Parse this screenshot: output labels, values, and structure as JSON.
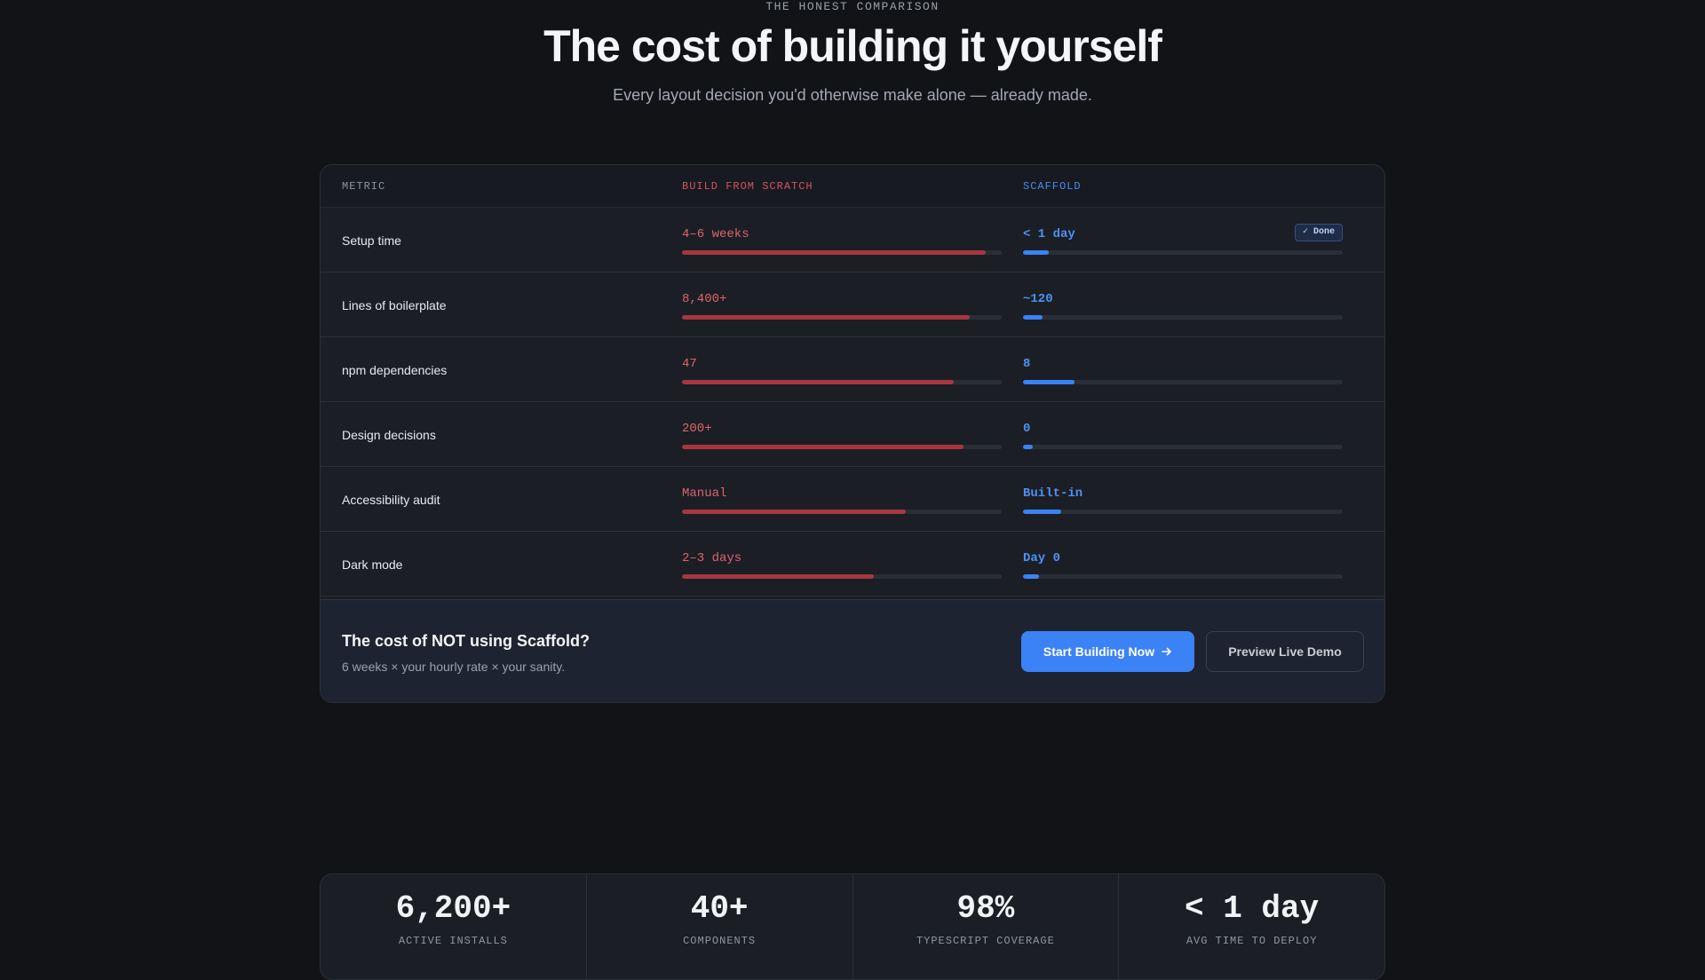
{
  "hero": {
    "eyebrow": "THE HONEST COMPARISON",
    "title": "The cost of building it yourself",
    "subtitle": "Every layout decision you'd otherwise make alone — already made."
  },
  "table": {
    "headers": {
      "metric": "METRIC",
      "scratch": "BUILD FROM SCRATCH",
      "scaffold": "SCAFFOLD"
    },
    "rows": [
      {
        "label": "Setup time",
        "scratch_value": "4–6 weeks",
        "scratch_fill_pct": 95,
        "scaffold_value": "< 1 day",
        "scaffold_fill_pct": 8,
        "badge": "✓ Done"
      },
      {
        "label": "Lines of boilerplate",
        "scratch_value": "8,400+",
        "scratch_fill_pct": 90,
        "scaffold_value": "~120",
        "scaffold_fill_pct": 6
      },
      {
        "label": "npm dependencies",
        "scratch_value": "47",
        "scratch_fill_pct": 85,
        "scaffold_value": "8",
        "scaffold_fill_pct": 16
      },
      {
        "label": "Design decisions",
        "scratch_value": "200+",
        "scratch_fill_pct": 88,
        "scaffold_value": "0",
        "scaffold_fill_pct": 3
      },
      {
        "label": "Accessibility audit",
        "scratch_value": "Manual",
        "scratch_fill_pct": 70,
        "scaffold_value": "Built-in",
        "scaffold_fill_pct": 12
      },
      {
        "label": "Dark mode",
        "scratch_value": "2–3 days",
        "scratch_fill_pct": 60,
        "scaffold_value": "Day 0",
        "scaffold_fill_pct": 5
      }
    ]
  },
  "cta": {
    "title": "The cost of NOT using Scaffold?",
    "subtitle": "6 weeks × your hourly rate × your sanity.",
    "primary_label": "Start Building Now",
    "secondary_label": "Preview Live Demo"
  },
  "stats": [
    {
      "value": "6,200+",
      "label": "ACTIVE INSTALLS"
    },
    {
      "value": "40+",
      "label": "COMPONENTS"
    },
    {
      "value": "98%",
      "label": "TYPESCRIPT COVERAGE"
    },
    {
      "value": "< 1 day",
      "label": "AVG TIME TO DEPLOY"
    }
  ],
  "colors": {
    "background": "#111317",
    "scratch_accent": "#e0636c",
    "scaffold_accent": "#3b82f6"
  }
}
